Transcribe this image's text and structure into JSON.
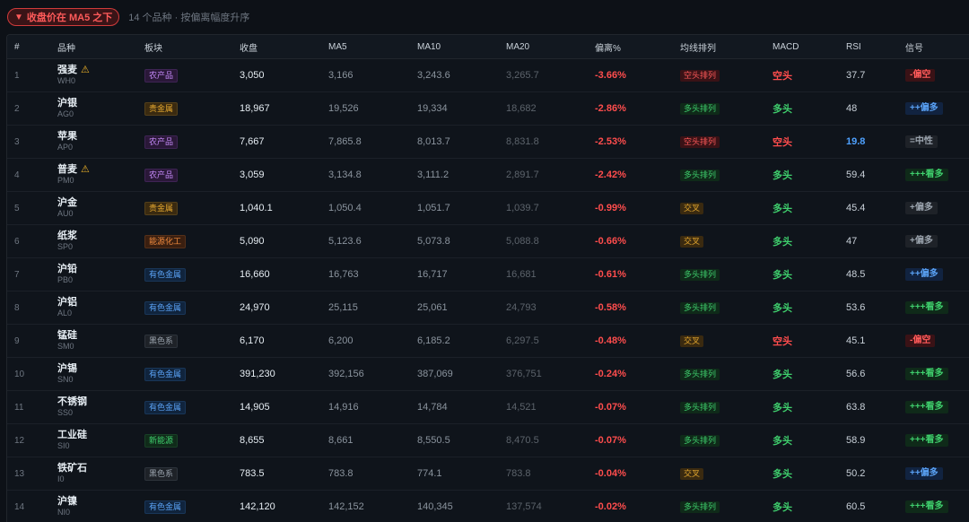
{
  "filter": {
    "label": "收盘价在 MA5 之下",
    "summary": "14 个品种 · 按偏离幅度升序"
  },
  "colors": {
    "up": "#3fcf6d",
    "down": "#ff4d4d",
    "neutral": "#e3a72f",
    "info": "#4ea1ff"
  },
  "table": {
    "headers": [
      "#",
      "品种",
      "板块",
      "收盘",
      "MA5",
      "MA10",
      "MA20",
      "偏离%",
      "均线排列",
      "MACD",
      "RSI",
      "信号"
    ],
    "rows": [
      {
        "idx": "1",
        "name": "强麦",
        "code": "WH0",
        "warn": true,
        "sector": "农产品",
        "sector_cls": "b-ag",
        "close": "3,050",
        "ma5": "3,166",
        "ma10": "3,243.6",
        "ma20": "3,265.7",
        "dev": "-3.66%",
        "trend": "空头排列",
        "trend_cls": "t-down",
        "macd": "空头",
        "macd_cls": "macd-down",
        "rsi": "37.7",
        "rsi_cls": "rsi",
        "signal": "-偏空",
        "signal_cls": "s-red"
      },
      {
        "idx": "2",
        "name": "沪银",
        "code": "AG0",
        "warn": false,
        "sector": "贵金属",
        "sector_cls": "b-pm",
        "close": "18,967",
        "ma5": "19,526",
        "ma10": "19,334",
        "ma20": "18,682",
        "dev": "-2.86%",
        "trend": "多头排列",
        "trend_cls": "t-up",
        "macd": "多头",
        "macd_cls": "macd-up",
        "rsi": "48",
        "rsi_cls": "rsi",
        "signal": "++偏多",
        "signal_cls": "s-blue"
      },
      {
        "idx": "3",
        "name": "苹果",
        "code": "AP0",
        "warn": false,
        "sector": "农产品",
        "sector_cls": "b-ag",
        "close": "7,667",
        "ma5": "7,865.8",
        "ma10": "8,013.7",
        "ma20": "8,831.8",
        "dev": "-2.53%",
        "trend": "空头排列",
        "trend_cls": "t-down",
        "macd": "空头",
        "macd_cls": "macd-down",
        "rsi": "19.8",
        "rsi_cls": "rsi-low",
        "signal": "=中性",
        "signal_cls": "s-gray"
      },
      {
        "idx": "4",
        "name": "普麦",
        "code": "PM0",
        "warn": true,
        "sector": "农产品",
        "sector_cls": "b-ag",
        "close": "3,059",
        "ma5": "3,134.8",
        "ma10": "3,111.2",
        "ma20": "2,891.7",
        "dev": "-2.42%",
        "trend": "多头排列",
        "trend_cls": "t-up",
        "macd": "多头",
        "macd_cls": "macd-up",
        "rsi": "59.4",
        "rsi_cls": "rsi",
        "signal": "+++看多",
        "signal_cls": "s-green"
      },
      {
        "idx": "5",
        "name": "沪金",
        "code": "AU0",
        "warn": false,
        "sector": "贵金属",
        "sector_cls": "b-pm",
        "close": "1,040.1",
        "ma5": "1,050.4",
        "ma10": "1,051.7",
        "ma20": "1,039.7",
        "dev": "-0.99%",
        "trend": "交叉",
        "trend_cls": "t-x",
        "macd": "多头",
        "macd_cls": "macd-up",
        "rsi": "45.4",
        "rsi_cls": "rsi",
        "signal": "+偏多",
        "signal_cls": "s-gray"
      },
      {
        "idx": "6",
        "name": "纸浆",
        "code": "SP0",
        "warn": false,
        "sector": "能源化工",
        "sector_cls": "b-ch",
        "close": "5,090",
        "ma5": "5,123.6",
        "ma10": "5,073.8",
        "ma20": "5,088.8",
        "dev": "-0.66%",
        "trend": "交叉",
        "trend_cls": "t-x",
        "macd": "多头",
        "macd_cls": "macd-up",
        "rsi": "47",
        "rsi_cls": "rsi",
        "signal": "+偏多",
        "signal_cls": "s-gray"
      },
      {
        "idx": "7",
        "name": "沪铅",
        "code": "PB0",
        "warn": false,
        "sector": "有色金属",
        "sector_cls": "b-nf",
        "close": "16,660",
        "ma5": "16,763",
        "ma10": "16,717",
        "ma20": "16,681",
        "dev": "-0.61%",
        "trend": "多头排列",
        "trend_cls": "t-up",
        "macd": "多头",
        "macd_cls": "macd-up",
        "rsi": "48.5",
        "rsi_cls": "rsi",
        "signal": "++偏多",
        "signal_cls": "s-blue"
      },
      {
        "idx": "8",
        "name": "沪铝",
        "code": "AL0",
        "warn": false,
        "sector": "有色金属",
        "sector_cls": "b-nf",
        "close": "24,970",
        "ma5": "25,115",
        "ma10": "25,061",
        "ma20": "24,793",
        "dev": "-0.58%",
        "trend": "多头排列",
        "trend_cls": "t-up",
        "macd": "多头",
        "macd_cls": "macd-up",
        "rsi": "53.6",
        "rsi_cls": "rsi",
        "signal": "+++看多",
        "signal_cls": "s-green"
      },
      {
        "idx": "9",
        "name": "锰硅",
        "code": "SM0",
        "warn": false,
        "sector": "黑色系",
        "sector_cls": "b-bk",
        "close": "6,170",
        "ma5": "6,200",
        "ma10": "6,185.2",
        "ma20": "6,297.5",
        "dev": "-0.48%",
        "trend": "交叉",
        "trend_cls": "t-x",
        "macd": "空头",
        "macd_cls": "macd-down",
        "rsi": "45.1",
        "rsi_cls": "rsi",
        "signal": "-偏空",
        "signal_cls": "s-red"
      },
      {
        "idx": "10",
        "name": "沪锡",
        "code": "SN0",
        "warn": false,
        "sector": "有色金属",
        "sector_cls": "b-nf",
        "close": "391,230",
        "ma5": "392,156",
        "ma10": "387,069",
        "ma20": "376,751",
        "dev": "-0.24%",
        "trend": "多头排列",
        "trend_cls": "t-up",
        "macd": "多头",
        "macd_cls": "macd-up",
        "rsi": "56.6",
        "rsi_cls": "rsi",
        "signal": "+++看多",
        "signal_cls": "s-green"
      },
      {
        "idx": "11",
        "name": "不锈钢",
        "code": "SS0",
        "warn": false,
        "sector": "有色金属",
        "sector_cls": "b-nf",
        "close": "14,905",
        "ma5": "14,916",
        "ma10": "14,784",
        "ma20": "14,521",
        "dev": "-0.07%",
        "trend": "多头排列",
        "trend_cls": "t-up",
        "macd": "多头",
        "macd_cls": "macd-up",
        "rsi": "63.8",
        "rsi_cls": "rsi",
        "signal": "+++看多",
        "signal_cls": "s-green"
      },
      {
        "idx": "12",
        "name": "工业硅",
        "code": "SI0",
        "warn": false,
        "sector": "新能源",
        "sector_cls": "b-ne",
        "close": "8,655",
        "ma5": "8,661",
        "ma10": "8,550.5",
        "ma20": "8,470.5",
        "dev": "-0.07%",
        "trend": "多头排列",
        "trend_cls": "t-up",
        "macd": "多头",
        "macd_cls": "macd-up",
        "rsi": "58.9",
        "rsi_cls": "rsi",
        "signal": "+++看多",
        "signal_cls": "s-green"
      },
      {
        "idx": "13",
        "name": "铁矿石",
        "code": "I0",
        "warn": false,
        "sector": "黑色系",
        "sector_cls": "b-bk",
        "close": "783.5",
        "ma5": "783.8",
        "ma10": "774.1",
        "ma20": "783.8",
        "dev": "-0.04%",
        "trend": "交叉",
        "trend_cls": "t-x",
        "macd": "多头",
        "macd_cls": "macd-up",
        "rsi": "50.2",
        "rsi_cls": "rsi",
        "signal": "++偏多",
        "signal_cls": "s-blue"
      },
      {
        "idx": "14",
        "name": "沪镍",
        "code": "NI0",
        "warn": false,
        "sector": "有色金属",
        "sector_cls": "b-nf",
        "close": "142,120",
        "ma5": "142,152",
        "ma10": "140,345",
        "ma20": "137,574",
        "dev": "-0.02%",
        "trend": "多头排列",
        "trend_cls": "t-up",
        "macd": "多头",
        "macd_cls": "macd-up",
        "rsi": "60.5",
        "rsi_cls": "rsi",
        "signal": "+++看多",
        "signal_cls": "s-green"
      }
    ]
  }
}
